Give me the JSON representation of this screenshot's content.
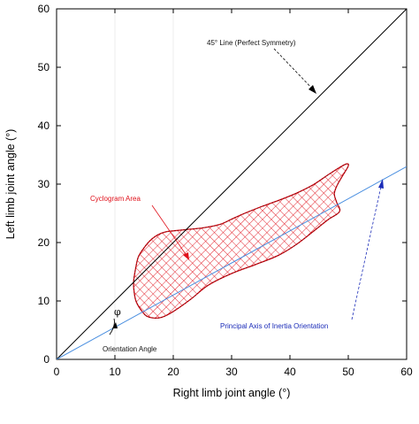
{
  "chart_data": {
    "type": "line",
    "title": "",
    "xlabel": "Right limb joint angle (°)",
    "ylabel": "Left limb joint angle (°)",
    "xlim": [
      0,
      60
    ],
    "ylim": [
      0,
      60
    ],
    "xticks": [
      0,
      10,
      20,
      30,
      40,
      50,
      60
    ],
    "yticks": [
      0,
      10,
      20,
      30,
      40,
      50,
      60
    ],
    "grid": false,
    "series": [
      {
        "name": "45° Line (Perfect Symmetry)",
        "color": "#000000",
        "x": [
          0,
          60
        ],
        "y": [
          0,
          60
        ]
      },
      {
        "name": "Principal Axis of Inertia Orientation",
        "color": "#4a8fe0",
        "x": [
          0,
          60
        ],
        "y": [
          0,
          33
        ]
      },
      {
        "name": "Cyclogram Area",
        "color": "#e0101a",
        "fill": "crosshatch",
        "x": [
          15.3,
          16.5,
          18,
          20,
          23,
          26,
          30,
          34,
          38,
          41,
          44,
          46.5,
          48.5,
          48,
          47.6,
          48,
          49,
          50,
          49.5,
          47,
          44,
          41,
          38,
          35,
          32,
          30,
          28,
          25,
          22,
          20,
          19,
          18,
          17,
          16,
          15,
          14,
          13.5,
          13.2,
          13.3,
          13.6,
          14.3,
          15.3
        ],
        "y": [
          7.5,
          7.1,
          7.2,
          8.2,
          10.3,
          12.7,
          14.7,
          16.2,
          17.8,
          19.6,
          21.9,
          23.9,
          25.3,
          26.9,
          28.3,
          29.6,
          31.4,
          33.1,
          33.4,
          31.9,
          29.9,
          28.4,
          27.2,
          26.1,
          24.9,
          24.0,
          23.1,
          22.5,
          22.2,
          22.0,
          21.9,
          21.6,
          21.1,
          20.3,
          19.1,
          17.5,
          15.3,
          13.2,
          11.5,
          10.0,
          8.7,
          7.5
        ]
      }
    ],
    "annotations": {
      "symmetry_line": "45° Line (Perfect Symmetry)",
      "cyclogram_area": "Cyclogram Area",
      "principal_axis": "Principal Axis of Inertia Orientation",
      "orientation_angle": "Orientation Angle",
      "angle_symbol": "φ"
    },
    "colors": {
      "symmetry": "#000000",
      "axis": "#4a8fe0",
      "cyclogram": "#e0101a",
      "blue_text": "#1a2bb8"
    }
  }
}
